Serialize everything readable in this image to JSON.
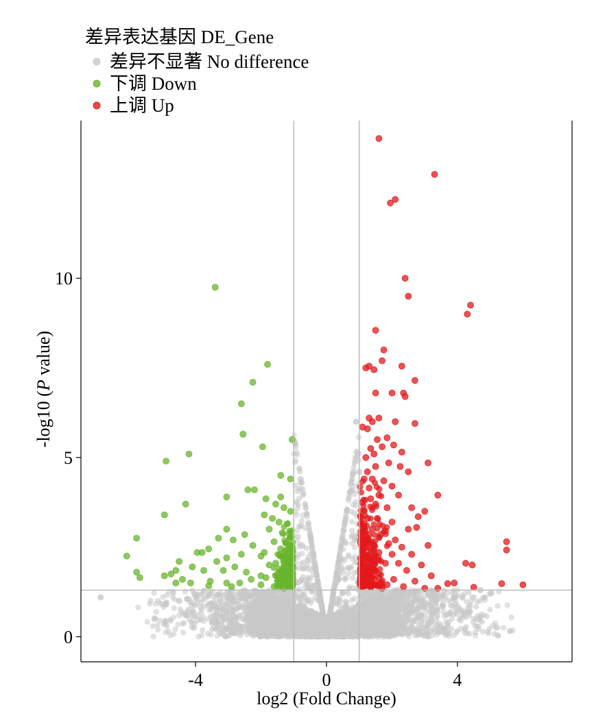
{
  "chart_data": {
    "type": "scatter",
    "title": "",
    "xlabel": "log2 (Fold Change)",
    "ylabel_prefix": "-log10 (",
    "ylabel_italic": "P",
    "ylabel_suffix": " value)",
    "xlim": [
      -7.5,
      7.5
    ],
    "ylim": [
      -0.7,
      14.4
    ],
    "xticks": [
      -4,
      0,
      4
    ],
    "xtick_labels": [
      "-4",
      "0",
      "4"
    ],
    "yticks": [
      0,
      5,
      10
    ],
    "ytick_labels": [
      "0",
      "5",
      "10"
    ],
    "grid": false,
    "thresholds": {
      "vlines": [
        -1,
        1
      ],
      "hline": 1.3
    },
    "legend": {
      "placement": "top-left",
      "title": "差异表达基因 DE_Gene",
      "entries": [
        {
          "key": "nodiff",
          "label": "差异不显著 No difference",
          "color": "#c8c8c8"
        },
        {
          "key": "down",
          "label": "下调 Down",
          "color": "#6ab42d"
        },
        {
          "key": "up",
          "label": "上调 Up",
          "color": "#e31a1c"
        }
      ]
    },
    "colors": {
      "nodiff": "#c8c8c8",
      "down": "#6ab42d",
      "up": "#e31a1c",
      "threshold_line": "#bdbdbd",
      "axis": "#000000"
    },
    "series": [
      {
        "key": "up",
        "points": [
          [
            1.6,
            13.9
          ],
          [
            3.3,
            12.9
          ],
          [
            2.1,
            12.2
          ],
          [
            1.95,
            12.1
          ],
          [
            2.4,
            10.0
          ],
          [
            2.5,
            9.5
          ],
          [
            4.4,
            9.25
          ],
          [
            4.3,
            9.0
          ],
          [
            1.5,
            8.55
          ],
          [
            1.75,
            8.0
          ],
          [
            1.7,
            7.7
          ],
          [
            1.3,
            7.55
          ],
          [
            1.45,
            7.45
          ],
          [
            1.2,
            7.5
          ],
          [
            2.3,
            7.55
          ],
          [
            2.7,
            7.15
          ],
          [
            2.35,
            6.8
          ],
          [
            2.0,
            6.8
          ],
          [
            2.4,
            6.7
          ],
          [
            1.5,
            6.8
          ],
          [
            1.6,
            6.1
          ],
          [
            1.4,
            6.0
          ],
          [
            1.3,
            6.1
          ],
          [
            2.1,
            6.0
          ],
          [
            2.7,
            5.95
          ],
          [
            1.1,
            5.85
          ],
          [
            1.25,
            5.8
          ],
          [
            1.55,
            5.5
          ],
          [
            1.85,
            5.55
          ],
          [
            1.7,
            5.3
          ],
          [
            2.05,
            5.35
          ],
          [
            1.35,
            5.25
          ],
          [
            1.45,
            5.1
          ],
          [
            1.2,
            5.0
          ],
          [
            2.3,
            5.15
          ],
          [
            3.1,
            4.85
          ],
          [
            1.9,
            4.85
          ],
          [
            1.5,
            4.75
          ],
          [
            1.25,
            4.6
          ],
          [
            2.25,
            4.75
          ],
          [
            2.5,
            4.6
          ],
          [
            1.15,
            4.4
          ],
          [
            1.4,
            4.4
          ],
          [
            1.75,
            4.35
          ],
          [
            2.0,
            4.2
          ],
          [
            1.3,
            4.15
          ],
          [
            2.2,
            3.95
          ],
          [
            1.6,
            3.95
          ],
          [
            3.4,
            3.95
          ],
          [
            1.1,
            3.75
          ],
          [
            1.35,
            3.85
          ],
          [
            1.5,
            3.7
          ],
          [
            1.85,
            3.6
          ],
          [
            2.6,
            3.6
          ],
          [
            3.0,
            3.5
          ],
          [
            2.8,
            3.35
          ],
          [
            1.25,
            3.3
          ],
          [
            1.55,
            3.3
          ],
          [
            2.0,
            3.2
          ],
          [
            1.15,
            3.05
          ],
          [
            1.4,
            3.0
          ],
          [
            1.8,
            2.95
          ],
          [
            2.5,
            3.0
          ],
          [
            2.75,
            3.05
          ],
          [
            1.3,
            2.85
          ],
          [
            1.65,
            2.85
          ],
          [
            2.1,
            2.7
          ],
          [
            1.2,
            2.65
          ],
          [
            1.45,
            2.55
          ],
          [
            1.9,
            2.6
          ],
          [
            2.3,
            2.5
          ],
          [
            3.1,
            2.55
          ],
          [
            1.1,
            2.35
          ],
          [
            1.35,
            2.4
          ],
          [
            1.6,
            2.35
          ],
          [
            2.0,
            2.3
          ],
          [
            2.6,
            2.3
          ],
          [
            5.5,
            2.65
          ],
          [
            5.5,
            2.42
          ],
          [
            1.25,
            2.15
          ],
          [
            1.5,
            2.1
          ],
          [
            1.8,
            2.05
          ],
          [
            2.2,
            2.05
          ],
          [
            2.9,
            2.0
          ],
          [
            1.15,
            1.95
          ],
          [
            1.45,
            1.85
          ],
          [
            2.45,
            1.85
          ],
          [
            4.25,
            2.05
          ],
          [
            4.45,
            2.0
          ],
          [
            3.2,
            1.7
          ],
          [
            1.3,
            1.7
          ],
          [
            1.6,
            1.65
          ],
          [
            2.05,
            1.6
          ],
          [
            2.7,
            1.55
          ],
          [
            1.2,
            1.5
          ],
          [
            1.5,
            1.45
          ],
          [
            1.85,
            1.45
          ],
          [
            3.7,
            1.48
          ],
          [
            3.9,
            1.5
          ],
          [
            5.35,
            1.48
          ],
          [
            6.0,
            1.45
          ],
          [
            1.1,
            1.4
          ],
          [
            1.35,
            1.38
          ],
          [
            2.35,
            1.4
          ],
          [
            3.4,
            1.35
          ],
          [
            4.5,
            1.38
          ],
          [
            3.0,
            1.35
          ],
          [
            1.7,
            1.35
          ]
        ]
      },
      {
        "key": "down",
        "points": [
          [
            -3.4,
            9.75
          ],
          [
            -1.8,
            7.6
          ],
          [
            -2.25,
            7.1
          ],
          [
            -2.6,
            6.5
          ],
          [
            -2.55,
            5.65
          ],
          [
            -1.05,
            5.5
          ],
          [
            -1.95,
            5.3
          ],
          [
            -4.2,
            5.1
          ],
          [
            -4.9,
            4.9
          ],
          [
            -1.4,
            4.5
          ],
          [
            -1.1,
            4.4
          ],
          [
            -2.4,
            4.1
          ],
          [
            -2.2,
            4.1
          ],
          [
            -3.05,
            3.9
          ],
          [
            -1.4,
            3.9
          ],
          [
            -1.85,
            3.85
          ],
          [
            -4.3,
            3.7
          ],
          [
            -1.55,
            3.7
          ],
          [
            -1.3,
            3.6
          ],
          [
            -1.1,
            3.5
          ],
          [
            -4.95,
            3.4
          ],
          [
            -1.9,
            3.4
          ],
          [
            -1.65,
            3.3
          ],
          [
            -1.45,
            3.2
          ],
          [
            -1.2,
            3.15
          ],
          [
            -3.05,
            3.0
          ],
          [
            -1.75,
            3.0
          ],
          [
            -1.35,
            2.9
          ],
          [
            -2.5,
            2.85
          ],
          [
            -3.3,
            2.75
          ],
          [
            -5.8,
            2.75
          ],
          [
            -2.85,
            2.7
          ],
          [
            -1.6,
            2.65
          ],
          [
            -2.25,
            2.55
          ],
          [
            -1.15,
            2.55
          ],
          [
            -3.6,
            2.45
          ],
          [
            -1.4,
            2.45
          ],
          [
            -3.95,
            2.35
          ],
          [
            -3.8,
            2.35
          ],
          [
            -1.9,
            2.35
          ],
          [
            -2.6,
            2.3
          ],
          [
            -6.1,
            2.25
          ],
          [
            -2.0,
            2.25
          ],
          [
            -3.05,
            2.2
          ],
          [
            -1.25,
            2.2
          ],
          [
            -4.5,
            2.1
          ],
          [
            -3.35,
            2.1
          ],
          [
            -1.55,
            2.05
          ],
          [
            -1.75,
            2.0
          ],
          [
            -4.1,
            1.95
          ],
          [
            -2.8,
            1.95
          ],
          [
            -1.1,
            1.95
          ],
          [
            -4.6,
            1.85
          ],
          [
            -3.75,
            1.85
          ],
          [
            -3.15,
            1.85
          ],
          [
            -5.8,
            1.8
          ],
          [
            -2.45,
            1.8
          ],
          [
            -1.35,
            1.8
          ],
          [
            -4.75,
            1.75
          ],
          [
            -4.95,
            1.7
          ],
          [
            -2.0,
            1.7
          ],
          [
            -5.7,
            1.65
          ],
          [
            -1.85,
            1.65
          ],
          [
            -2.3,
            1.6
          ],
          [
            -4.4,
            1.6
          ],
          [
            -3.55,
            1.55
          ],
          [
            -1.5,
            1.55
          ],
          [
            -4.6,
            1.5
          ],
          [
            -4.15,
            1.5
          ],
          [
            -3.05,
            1.5
          ],
          [
            -2.65,
            1.5
          ],
          [
            -1.2,
            1.5
          ],
          [
            -2.0,
            1.45
          ],
          [
            -3.6,
            1.42
          ],
          [
            -2.9,
            1.4
          ],
          [
            -1.6,
            1.4
          ],
          [
            -1.05,
            1.4
          ],
          [
            -1.3,
            1.35
          ]
        ]
      }
    ]
  }
}
